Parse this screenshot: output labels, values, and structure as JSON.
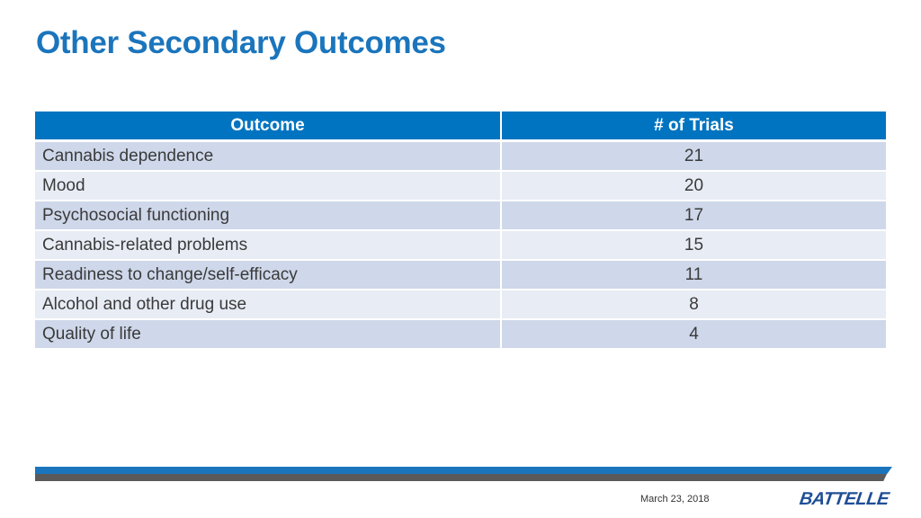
{
  "slide": {
    "title": "Other Secondary Outcomes"
  },
  "table": {
    "headers": [
      "Outcome",
      "# of Trials"
    ],
    "rows": [
      {
        "outcome": "Cannabis dependence",
        "trials": "21"
      },
      {
        "outcome": "Mood",
        "trials": "20"
      },
      {
        "outcome": "Psychosocial functioning",
        "trials": "17"
      },
      {
        "outcome": "Cannabis-related problems",
        "trials": "15"
      },
      {
        "outcome": "Readiness to change/self-efficacy",
        "trials": "11"
      },
      {
        "outcome": "Alcohol and other drug use",
        "trials": "8"
      },
      {
        "outcome": "Quality of life",
        "trials": "4"
      }
    ]
  },
  "footer": {
    "date": "March 23, 2018",
    "logo_text": "BATTELLE"
  },
  "colors": {
    "title": "#1b75bc",
    "header_bg": "#0074c1",
    "row_odd": "#cfd8ea",
    "row_even": "#e8ecf5",
    "footer_blue": "#1b75bc",
    "footer_gray": "#5a5a5a",
    "logo": "#1f4e96"
  }
}
